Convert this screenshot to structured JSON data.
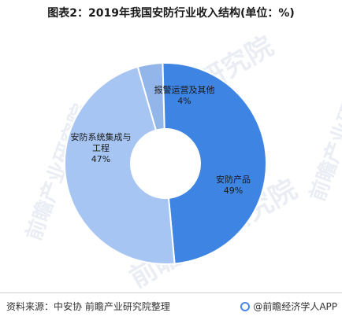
{
  "title": "图表2：2019年我国安防行业收入结构(单位：%)",
  "watermark": "前瞻产业研究院",
  "chart_data": {
    "type": "pie",
    "donut": true,
    "title": "图表2：2019年我国安防行业收入结构(单位：%)",
    "slices": [
      {
        "label": "报警运营及其他",
        "value": 4,
        "value_label": "4%",
        "color": "#93b6ea"
      },
      {
        "label": "安防产品",
        "value": 49,
        "value_label": "49%",
        "color": "#3d84e3"
      },
      {
        "label": "安防系统集成与工程",
        "label_lines": [
          "安防系统集成与",
          "工程"
        ],
        "value": 47,
        "value_label": "47%",
        "color": "#a6c5f2"
      }
    ],
    "legend": "none"
  },
  "footer": {
    "source": "资料来源：中安协 前瞻产业研究院整理",
    "brand": "@前瞻经济学人APP"
  },
  "colors": {
    "accent": "#3d84e3",
    "separator": "#ffffff"
  }
}
